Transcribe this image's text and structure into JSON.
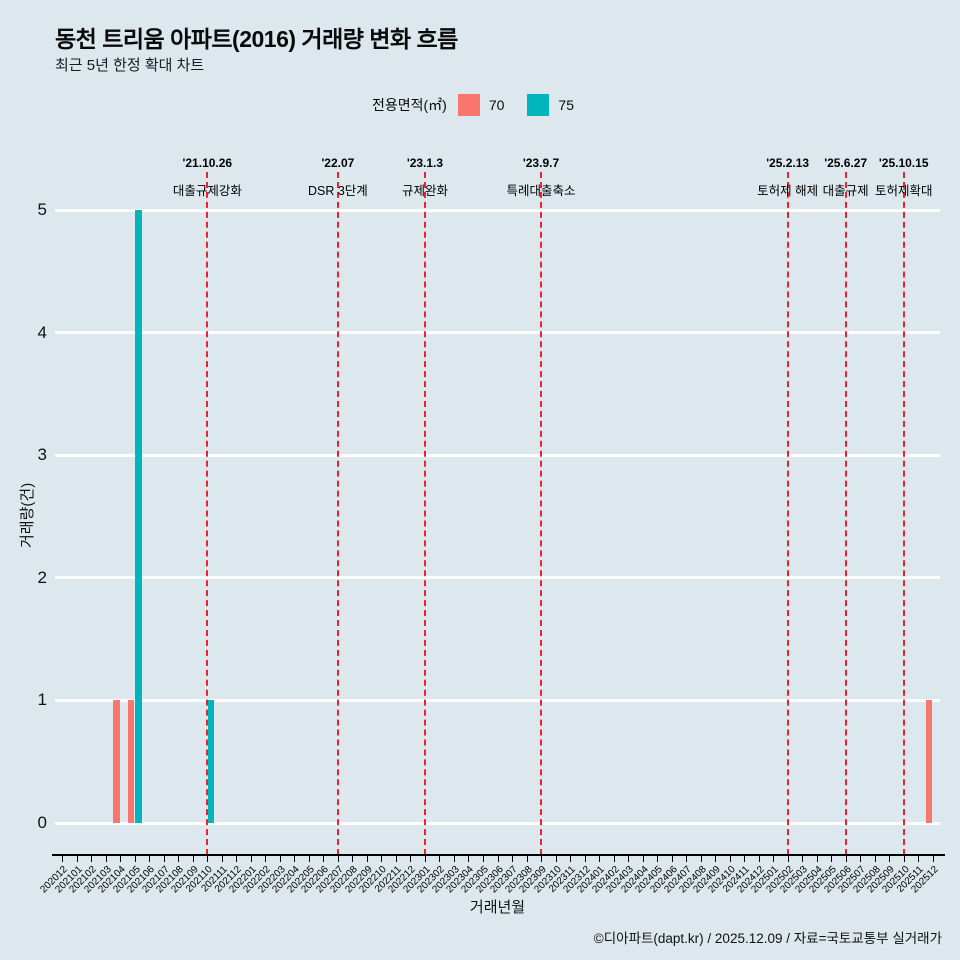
{
  "footer": "©디아파트(dapt.kr) / 2025.12.09 / 자료=국토교통부 실거래가",
  "chart_data": {
    "type": "bar",
    "title": "동천 트리움 아파트(2016) 거래량 변화 흐름",
    "subtitle": "최근 5년 한정 확대 차트",
    "legend_title": "전용면적(㎡)",
    "legend_position": "top",
    "xlabel": "거래년월",
    "ylabel": "거래량(건)",
    "ylim": [
      0,
      5
    ],
    "yticks": [
      0,
      1,
      2,
      3,
      4,
      5
    ],
    "grid": "horizontal-white",
    "background_color": "#dce8ed",
    "gridline_color": "#ffffff",
    "event_line_color": "#ee2130",
    "categories": [
      "202012",
      "202101",
      "202102",
      "202103",
      "202104",
      "202105",
      "202106",
      "202107",
      "202108",
      "202109",
      "202110",
      "202111",
      "202112",
      "202201",
      "202202",
      "202203",
      "202204",
      "202205",
      "202206",
      "202207",
      "202208",
      "202209",
      "202210",
      "202211",
      "202212",
      "202301",
      "202302",
      "202303",
      "202304",
      "202305",
      "202306",
      "202307",
      "202308",
      "202309",
      "202310",
      "202311",
      "202312",
      "202401",
      "202402",
      "202403",
      "202404",
      "202405",
      "202406",
      "202407",
      "202408",
      "202409",
      "202410",
      "202411",
      "202412",
      "202501",
      "202502",
      "202503",
      "202504",
      "202505",
      "202506",
      "202507",
      "202508",
      "202509",
      "202510",
      "202511",
      "202512"
    ],
    "series": [
      {
        "name": "70",
        "color": "#f8766d",
        "values": [
          0,
          0,
          0,
          0,
          1,
          1,
          0,
          0,
          0,
          0,
          0,
          0,
          0,
          0,
          0,
          0,
          0,
          0,
          0,
          0,
          0,
          0,
          0,
          0,
          0,
          0,
          0,
          0,
          0,
          0,
          0,
          0,
          0,
          0,
          0,
          0,
          0,
          0,
          0,
          0,
          0,
          0,
          0,
          0,
          0,
          0,
          0,
          0,
          0,
          0,
          0,
          0,
          0,
          0,
          0,
          0,
          0,
          0,
          0,
          0,
          1
        ]
      },
      {
        "name": "75",
        "color": "#00b5bc",
        "values": [
          0,
          0,
          0,
          0,
          0,
          5,
          0,
          0,
          0,
          0,
          1,
          0,
          0,
          0,
          0,
          0,
          0,
          0,
          0,
          0,
          0,
          0,
          0,
          0,
          0,
          0,
          0,
          0,
          0,
          0,
          0,
          0,
          0,
          0,
          0,
          0,
          0,
          0,
          0,
          0,
          0,
          0,
          0,
          0,
          0,
          0,
          0,
          0,
          0,
          0,
          0,
          0,
          0,
          0,
          0,
          0,
          0,
          0,
          0,
          0,
          0
        ]
      }
    ],
    "annotations": [
      {
        "month": "202110",
        "date": "'21.10.26",
        "label": "대출규제강화"
      },
      {
        "month": "202207",
        "date": "'22.07",
        "label": "DSR 3단계"
      },
      {
        "month": "202301",
        "date": "'23.1.3",
        "label": "규제완화"
      },
      {
        "month": "202309",
        "date": "'23.9.7",
        "label": "특례대출축소"
      },
      {
        "month": "202502",
        "date": "'25.2.13",
        "label": "토허제 해제"
      },
      {
        "month": "202506",
        "date": "'25.6.27",
        "label": "대출규제"
      },
      {
        "month": "202510",
        "date": "'25.10.15",
        "label": "토허제확대"
      }
    ]
  }
}
